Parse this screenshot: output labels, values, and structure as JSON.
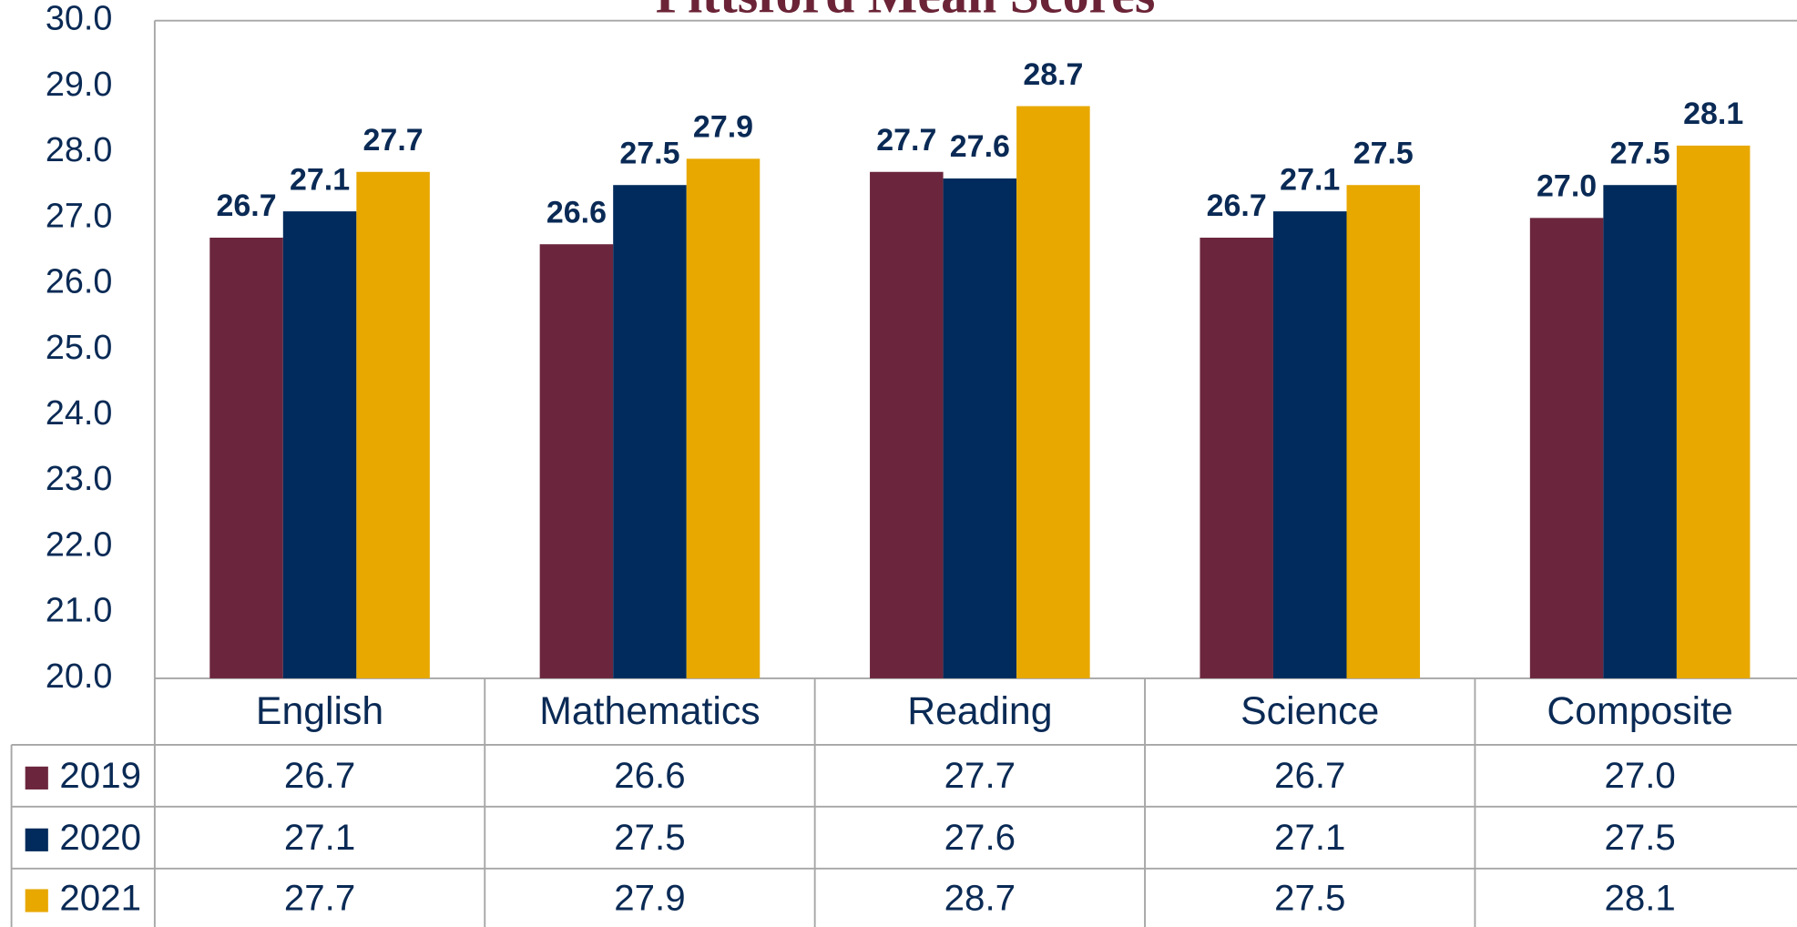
{
  "chart_data": {
    "type": "bar",
    "title": "Pittsford Mean Scores",
    "categories": [
      "English",
      "Mathematics",
      "Reading",
      "Science",
      "Composite"
    ],
    "series": [
      {
        "name": "2019",
        "color": "#6b263d",
        "values": [
          26.7,
          26.6,
          27.7,
          26.7,
          27.0
        ],
        "value_labels": [
          "26.7",
          "26.6",
          "27.7",
          "26.7",
          "27.0"
        ]
      },
      {
        "name": "2020",
        "color": "#002b5c",
        "values": [
          27.1,
          27.5,
          27.6,
          27.1,
          27.5
        ],
        "value_labels": [
          "27.1",
          "27.5",
          "27.6",
          "27.1",
          "27.5"
        ]
      },
      {
        "name": "2021",
        "color": "#e8a800",
        "values": [
          27.7,
          27.9,
          28.7,
          27.5,
          28.1
        ],
        "value_labels": [
          "27.7",
          "27.9",
          "28.7",
          "27.5",
          "28.1"
        ]
      }
    ],
    "ylim": [
      20,
      30
    ],
    "yticks": [
      {
        "value": 20,
        "label": "20.0"
      },
      {
        "value": 21,
        "label": "21.0"
      },
      {
        "value": 22,
        "label": "22.0"
      },
      {
        "value": 23,
        "label": "23.0"
      },
      {
        "value": 24,
        "label": "24.0"
      },
      {
        "value": 25,
        "label": "25.0"
      },
      {
        "value": 26,
        "label": "26.0"
      },
      {
        "value": 27,
        "label": "27.0"
      },
      {
        "value": 28,
        "label": "28.0"
      },
      {
        "value": 29,
        "label": "29.0"
      },
      {
        "value": 30,
        "label": "30.0"
      }
    ],
    "grid": false
  }
}
